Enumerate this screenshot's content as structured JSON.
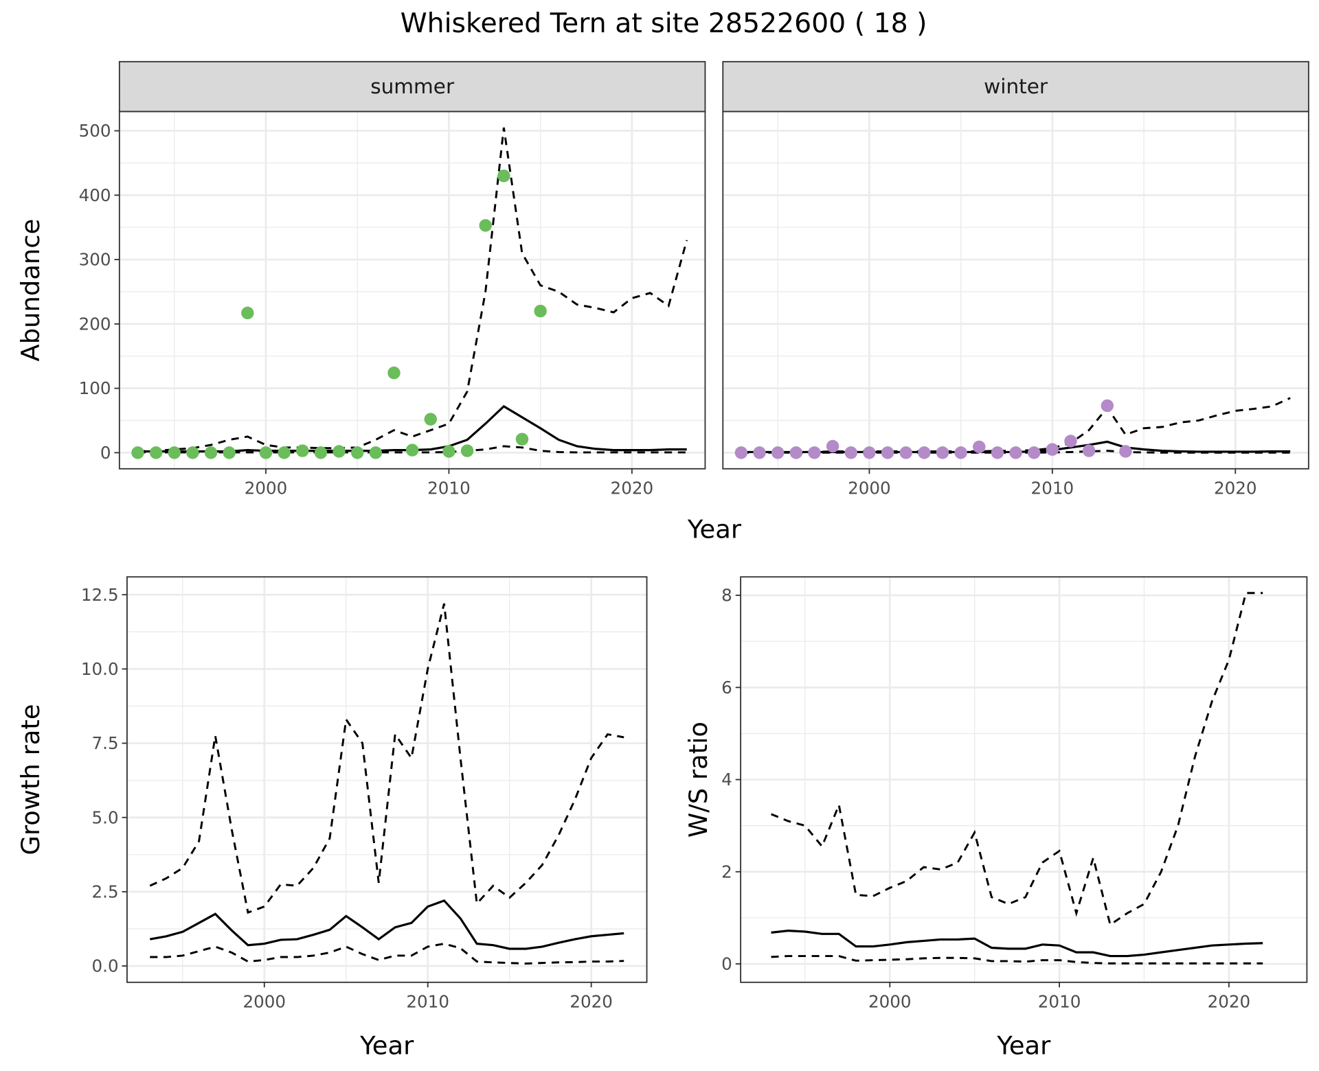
{
  "title": "Whiskered Tern at site 28522600 ( 18 )",
  "line_color": "#000000",
  "chart_data": [
    {
      "type": "line",
      "facet": "summer",
      "xlabel": "Year",
      "ylabel": "Abundance",
      "xlim": [
        1992,
        2024
      ],
      "ylim": [
        -25,
        530
      ],
      "xticks": [
        2000,
        2010,
        2020
      ],
      "yticks": [
        0,
        100,
        200,
        300,
        400,
        500
      ],
      "grid": true,
      "point_color": "#6abd5a",
      "points": {
        "x": [
          1993,
          1994,
          1995,
          1996,
          1997,
          1998,
          1999,
          2000,
          2001,
          2002,
          2003,
          2004,
          2005,
          2006,
          2007,
          2008,
          2009,
          2010,
          2011,
          2012,
          2013,
          2014,
          2015
        ],
        "y": [
          0,
          0,
          0,
          0,
          0,
          0,
          217,
          0,
          0,
          3,
          0,
          2,
          0,
          0,
          124,
          4,
          52,
          2,
          3,
          353,
          430,
          21,
          220
        ]
      },
      "x": [
        1993,
        1994,
        1995,
        1996,
        1997,
        1998,
        1999,
        2000,
        2001,
        2002,
        2003,
        2004,
        2005,
        2006,
        2007,
        2008,
        2009,
        2010,
        2011,
        2012,
        2013,
        2014,
        2015,
        2016,
        2017,
        2018,
        2019,
        2020,
        2021,
        2022,
        2023
      ],
      "mean": [
        2,
        2,
        2,
        2,
        2,
        2,
        4,
        3,
        3,
        3,
        3,
        3,
        3,
        3,
        4,
        4,
        5,
        10,
        20,
        45,
        72,
        55,
        38,
        20,
        10,
        6,
        4,
        4,
        4,
        5,
        5
      ],
      "upper": [
        2,
        3,
        5,
        7,
        12,
        20,
        25,
        12,
        8,
        8,
        7,
        7,
        8,
        20,
        35,
        25,
        35,
        45,
        95,
        250,
        505,
        310,
        260,
        250,
        230,
        225,
        218,
        240,
        248,
        228,
        330
      ],
      "lower": [
        0.5,
        0.5,
        0.5,
        0.5,
        0.5,
        0.5,
        0.5,
        0.5,
        0.5,
        0.5,
        0.5,
        0.5,
        0.5,
        0.5,
        0.5,
        0.5,
        0.5,
        1,
        3,
        5,
        10,
        8,
        3,
        1,
        0.5,
        0.5,
        0.5,
        0.5,
        0.5,
        0.5,
        0.5
      ]
    },
    {
      "type": "line",
      "facet": "winter",
      "xlabel": "Year",
      "ylabel": "Abundance",
      "xlim": [
        1992,
        2024
      ],
      "ylim": [
        -25,
        530
      ],
      "xticks": [
        2000,
        2010,
        2020
      ],
      "yticks": [
        0,
        100,
        200,
        300,
        400,
        500
      ],
      "grid": true,
      "point_color": "#b48ac8",
      "points": {
        "x": [
          1993,
          1994,
          1995,
          1996,
          1997,
          1998,
          1999,
          2000,
          2001,
          2002,
          2003,
          2004,
          2005,
          2006,
          2007,
          2008,
          2009,
          2010,
          2011,
          2012,
          2013,
          2014
        ],
        "y": [
          0,
          0,
          0,
          0,
          0,
          10,
          0,
          0,
          0,
          0,
          0,
          0,
          0,
          9,
          0,
          0,
          0,
          5,
          18,
          3,
          73,
          2
        ]
      },
      "x": [
        1993,
        1994,
        1995,
        1996,
        1997,
        1998,
        1999,
        2000,
        2001,
        2002,
        2003,
        2004,
        2005,
        2006,
        2007,
        2008,
        2009,
        2010,
        2011,
        2012,
        2013,
        2014,
        2015,
        2016,
        2017,
        2018,
        2019,
        2020,
        2021,
        2022,
        2023
      ],
      "mean": [
        1,
        1,
        1,
        1,
        1,
        1,
        1,
        1,
        1,
        1,
        1,
        1,
        1,
        1,
        1,
        1,
        2,
        4,
        8,
        12,
        17,
        8,
        5,
        3,
        2,
        1.5,
        1.5,
        1.5,
        1.5,
        2,
        2
      ],
      "upper": [
        1,
        1,
        1,
        1,
        1,
        2,
        2,
        2,
        2,
        2,
        2,
        2,
        2,
        2,
        3,
        3,
        4,
        7,
        15,
        35,
        70,
        28,
        38,
        40,
        47,
        50,
        58,
        65,
        68,
        72,
        85
      ],
      "lower": [
        0,
        0,
        0,
        0,
        0,
        0,
        0,
        0,
        0,
        0,
        0,
        0,
        0,
        0,
        0,
        0,
        0,
        0.5,
        1,
        2,
        3,
        1,
        0.5,
        0,
        0,
        0,
        0,
        0,
        0,
        0,
        0
      ]
    },
    {
      "type": "line",
      "xlabel": "Year",
      "ylabel": "Growth rate",
      "xlim": [
        1991.6,
        2023.4
      ],
      "ylim": [
        -0.55,
        13.1
      ],
      "xticks": [
        2000,
        2010,
        2020
      ],
      "yticks": [
        0.0,
        2.5,
        5.0,
        7.5,
        10.0,
        12.5
      ],
      "ytick_labels": [
        "0.0",
        "2.5",
        "5.0",
        "7.5",
        "10.0",
        "12.5"
      ],
      "grid": true,
      "x": [
        1993,
        1994,
        1995,
        1996,
        1997,
        1998,
        1999,
        2000,
        2001,
        2002,
        2003,
        2004,
        2005,
        2006,
        2007,
        2008,
        2009,
        2010,
        2011,
        2012,
        2013,
        2014,
        2015,
        2016,
        2017,
        2018,
        2019,
        2020,
        2021,
        2022
      ],
      "mean": [
        0.9,
        1.0,
        1.15,
        1.45,
        1.75,
        1.2,
        0.7,
        0.75,
        0.88,
        0.9,
        1.05,
        1.22,
        1.68,
        1.3,
        0.9,
        1.3,
        1.45,
        2.0,
        2.2,
        1.6,
        0.75,
        0.7,
        0.58,
        0.58,
        0.65,
        0.78,
        0.9,
        1.0,
        1.05,
        1.1
      ],
      "upper": [
        2.7,
        2.95,
        3.3,
        4.2,
        7.75,
        4.6,
        1.8,
        2.0,
        2.75,
        2.7,
        3.3,
        4.3,
        8.3,
        7.5,
        2.8,
        7.8,
        7.0,
        10.0,
        12.2,
        7.0,
        2.1,
        2.7,
        2.3,
        2.8,
        3.4,
        4.4,
        5.6,
        7.0,
        7.8,
        7.7
      ],
      "lower": [
        0.3,
        0.3,
        0.35,
        0.5,
        0.65,
        0.45,
        0.15,
        0.2,
        0.3,
        0.3,
        0.35,
        0.45,
        0.65,
        0.4,
        0.2,
        0.35,
        0.35,
        0.65,
        0.75,
        0.6,
        0.15,
        0.12,
        0.1,
        0.08,
        0.1,
        0.12,
        0.13,
        0.15,
        0.15,
        0.17
      ]
    },
    {
      "type": "line",
      "xlabel": "Year",
      "ylabel": "W/S ratio",
      "xlim": [
        1991.2,
        2024.6
      ],
      "ylim": [
        -0.4,
        8.4
      ],
      "xticks": [
        2000,
        2010,
        2020
      ],
      "yticks": [
        0,
        2,
        4,
        6,
        8
      ],
      "grid": true,
      "x": [
        1993,
        1994,
        1995,
        1996,
        1997,
        1998,
        1999,
        2000,
        2001,
        2002,
        2003,
        2004,
        2005,
        2006,
        2007,
        2008,
        2009,
        2010,
        2011,
        2012,
        2013,
        2014,
        2015,
        2016,
        2017,
        2018,
        2019,
        2020,
        2021,
        2022
      ],
      "mean": [
        0.68,
        0.72,
        0.7,
        0.65,
        0.65,
        0.38,
        0.38,
        0.42,
        0.47,
        0.5,
        0.53,
        0.53,
        0.55,
        0.35,
        0.33,
        0.33,
        0.42,
        0.4,
        0.25,
        0.25,
        0.17,
        0.17,
        0.2,
        0.25,
        0.3,
        0.35,
        0.4,
        0.42,
        0.44,
        0.45
      ],
      "upper": [
        3.25,
        3.1,
        3.0,
        2.55,
        3.45,
        1.5,
        1.47,
        1.65,
        1.8,
        2.1,
        2.05,
        2.2,
        2.85,
        1.45,
        1.3,
        1.45,
        2.2,
        2.45,
        1.1,
        2.3,
        0.85,
        1.1,
        1.3,
        2.0,
        3.0,
        4.5,
        5.7,
        6.6,
        8.05,
        8.05
      ],
      "lower": [
        0.15,
        0.17,
        0.17,
        0.17,
        0.17,
        0.07,
        0.08,
        0.09,
        0.1,
        0.12,
        0.13,
        0.13,
        0.12,
        0.06,
        0.06,
        0.05,
        0.08,
        0.08,
        0.04,
        0.02,
        0.01,
        0.01,
        0.01,
        0.01,
        0.01,
        0.01,
        0.01,
        0.01,
        0.01,
        0.01
      ]
    }
  ]
}
